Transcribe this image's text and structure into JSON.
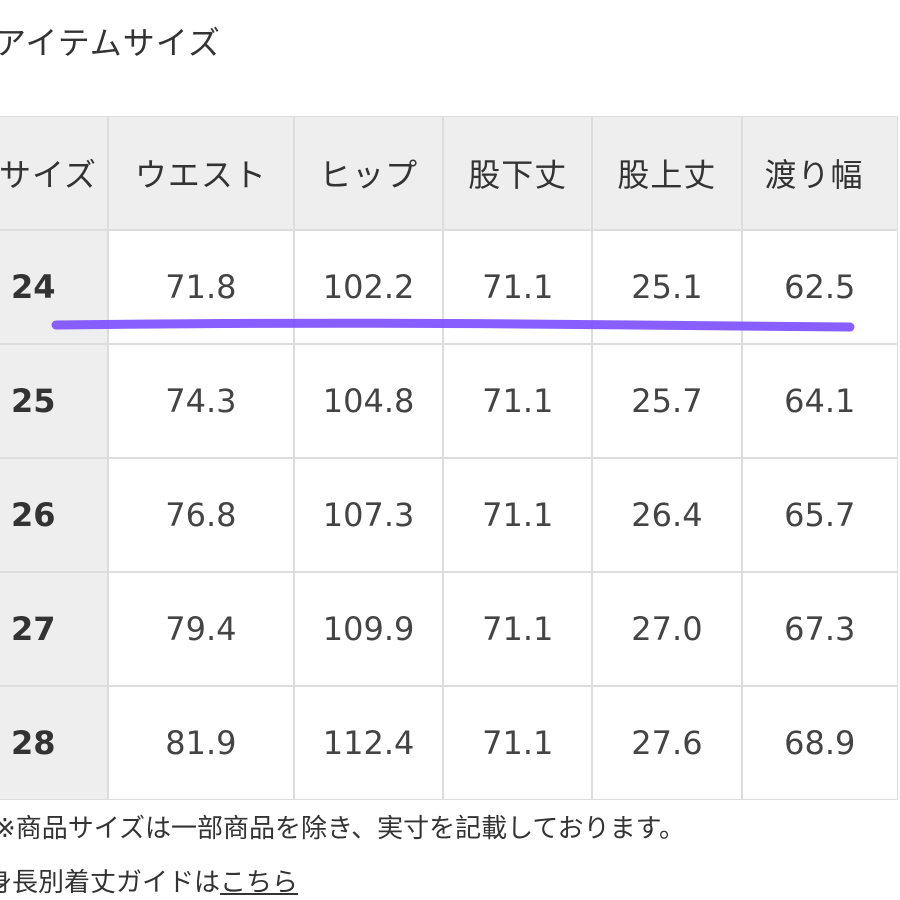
{
  "section": {
    "title": "アイテムサイズ"
  },
  "table": {
    "headers": [
      "サイズ",
      "ウエスト",
      "ヒップ",
      "股下丈",
      "股上丈",
      "渡り幅"
    ],
    "rows": [
      {
        "size": "24",
        "cells": [
          "71.8",
          "102.2",
          "71.1",
          "25.1",
          "62.5"
        ]
      },
      {
        "size": "25",
        "cells": [
          "74.3",
          "104.8",
          "71.1",
          "25.7",
          "64.1"
        ]
      },
      {
        "size": "26",
        "cells": [
          "76.8",
          "107.3",
          "71.1",
          "26.4",
          "65.7"
        ]
      },
      {
        "size": "27",
        "cells": [
          "79.4",
          "109.9",
          "71.1",
          "27.0",
          "67.3"
        ]
      },
      {
        "size": "28",
        "cells": [
          "81.9",
          "112.4",
          "71.1",
          "27.6",
          "68.9"
        ]
      }
    ]
  },
  "highlight": {
    "color": "#7b4dff",
    "target_row": "24"
  },
  "footer": {
    "note": "※商品サイズは一部商品を除き、実寸を記載しております。",
    "guide_prefix": "身長別着丈ガイドは",
    "guide_link": "こちら"
  },
  "colors": {
    "header_bg": "#eeeeee",
    "border": "#dddddd",
    "text": "#333333"
  }
}
